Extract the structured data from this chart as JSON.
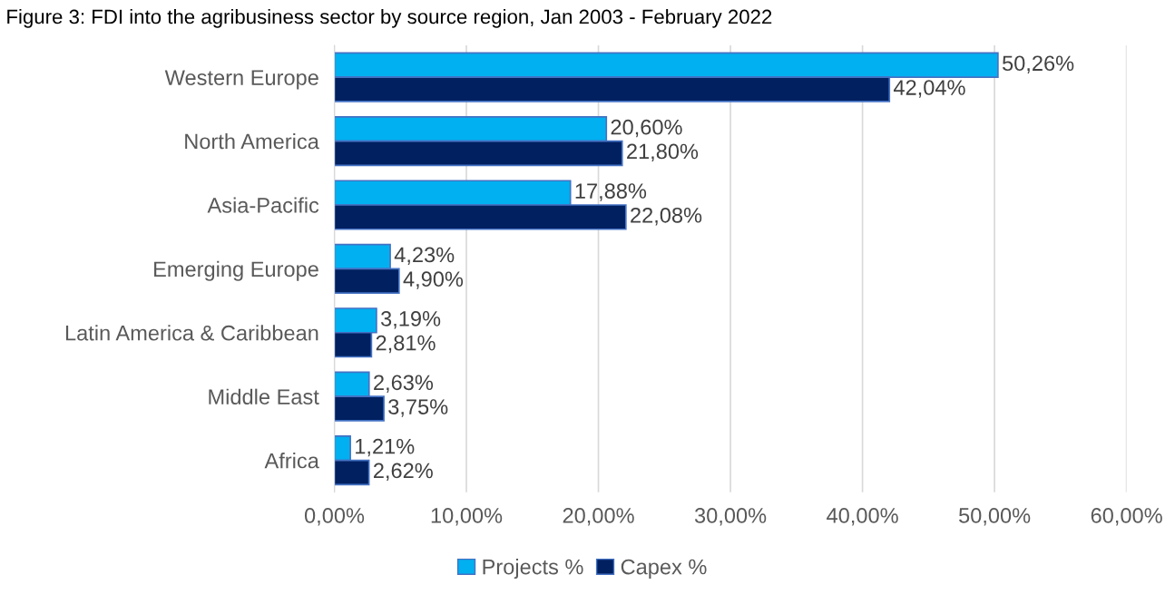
{
  "chart_data": {
    "type": "bar",
    "orientation": "horizontal",
    "title": "Figure 3: FDI into the agribusiness sector by source region, Jan 2003 - February 2022",
    "categories": [
      "Western Europe",
      "North America",
      "Asia-Pacific",
      "Emerging Europe",
      "Latin America & Caribbean",
      "Middle East",
      "Africa"
    ],
    "series": [
      {
        "name": "Projects %",
        "color": "#00b0f0",
        "values": [
          50.26,
          20.6,
          17.88,
          4.23,
          3.19,
          2.63,
          1.21
        ],
        "value_labels": [
          "50,26%",
          "20,60%",
          "17,88%",
          "4,23%",
          "3,19%",
          "2,63%",
          "1,21%"
        ]
      },
      {
        "name": "Capex %",
        "color": "#002060",
        "values": [
          42.04,
          21.8,
          22.08,
          4.9,
          2.81,
          3.75,
          2.62
        ],
        "value_labels": [
          "42,04%",
          "21,80%",
          "22,08%",
          "4,90%",
          "2,81%",
          "3,75%",
          "2,62%"
        ]
      }
    ],
    "xlim": [
      0,
      60
    ],
    "xticks": [
      {
        "value": 0,
        "label": "0,00%"
      },
      {
        "value": 10,
        "label": "10,00%"
      },
      {
        "value": 20,
        "label": "20,00%"
      },
      {
        "value": 30,
        "label": "30,00%"
      },
      {
        "value": 40,
        "label": "40,00%"
      },
      {
        "value": 50,
        "label": "50,00%"
      },
      {
        "value": 60,
        "label": "60,00%"
      }
    ],
    "grid": "x",
    "legend": "bottom"
  }
}
